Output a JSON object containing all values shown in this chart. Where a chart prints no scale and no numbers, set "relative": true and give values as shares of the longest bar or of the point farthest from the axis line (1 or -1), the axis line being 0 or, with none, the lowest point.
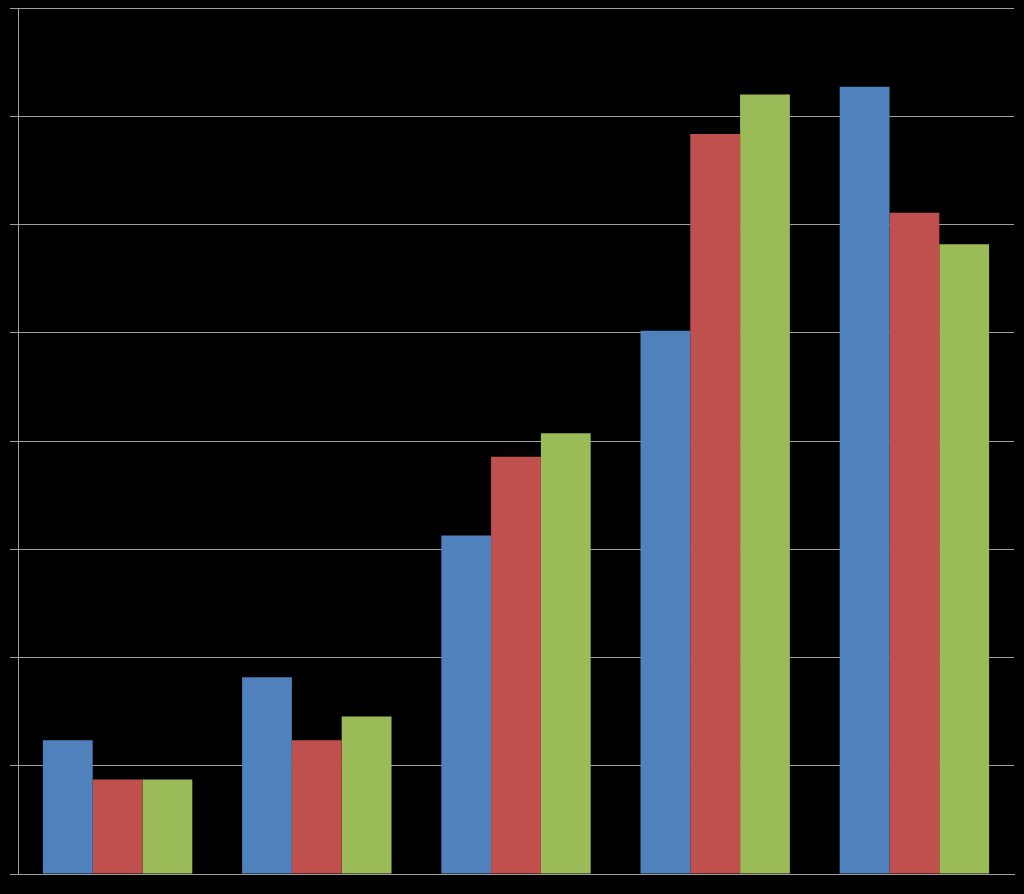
{
  "chart_data": {
    "type": "bar",
    "relative": true,
    "grid": true,
    "categories": [
      null,
      null,
      null,
      null,
      null
    ],
    "series": [
      {
        "color": "#4f81bd",
        "values": [
          0.17,
          0.25,
          0.43,
          0.69,
          1
        ]
      },
      {
        "color": "#c0504d",
        "values": [
          0.12,
          0.17,
          0.53,
          0.94,
          0.84
        ]
      },
      {
        "color": "#9bbb59",
        "values": [
          0.12,
          0.2,
          0.56,
          0.99,
          0.8
        ]
      }
    ]
  }
}
